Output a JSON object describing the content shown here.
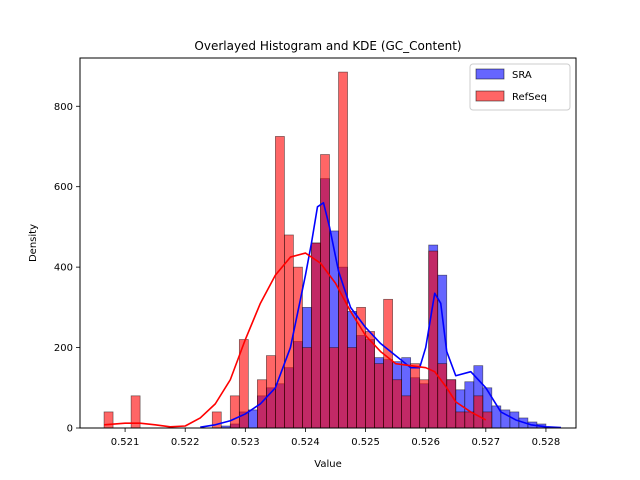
{
  "chart_data": {
    "type": "bar",
    "title": "Overlayed Histogram and KDE (GC_Content)",
    "xlabel": "Value",
    "ylabel": "Density",
    "xlim": [
      0.52025,
      0.5285
    ],
    "ylim": [
      0,
      920
    ],
    "xticks": [
      0.521,
      0.522,
      0.523,
      0.524,
      0.525,
      0.526,
      0.527,
      0.528
    ],
    "xtick_labels": [
      "0.521",
      "0.522",
      "0.523",
      "0.524",
      "0.525",
      "0.526",
      "0.527",
      "0.528"
    ],
    "yticks": [
      0,
      200,
      400,
      600,
      800
    ],
    "ytick_labels": [
      "0",
      "200",
      "400",
      "600",
      "800"
    ],
    "legend_position": "top-right",
    "grid": false,
    "series": [
      {
        "name": "SRA",
        "kind": "histogram",
        "color": "#0000ff",
        "alpha": 0.6,
        "bin_width": 0.00015,
        "bins": [
          {
            "x": 0.5226,
            "y": 5
          },
          {
            "x": 0.52275,
            "y": 10
          },
          {
            "x": 0.5229,
            "y": 40
          },
          {
            "x": 0.52305,
            "y": 45
          },
          {
            "x": 0.5232,
            "y": 80
          },
          {
            "x": 0.52335,
            "y": 100
          },
          {
            "x": 0.5235,
            "y": 110
          },
          {
            "x": 0.52365,
            "y": 150
          },
          {
            "x": 0.5238,
            "y": 215
          },
          {
            "x": 0.52395,
            "y": 300
          },
          {
            "x": 0.5241,
            "y": 460
          },
          {
            "x": 0.52425,
            "y": 620
          },
          {
            "x": 0.5244,
            "y": 490
          },
          {
            "x": 0.52455,
            "y": 400
          },
          {
            "x": 0.5247,
            "y": 290
          },
          {
            "x": 0.52485,
            "y": 230
          },
          {
            "x": 0.525,
            "y": 220
          },
          {
            "x": 0.52515,
            "y": 175
          },
          {
            "x": 0.5253,
            "y": 170
          },
          {
            "x": 0.52545,
            "y": 165
          },
          {
            "x": 0.5256,
            "y": 175
          },
          {
            "x": 0.52575,
            "y": 125
          },
          {
            "x": 0.5259,
            "y": 110
          },
          {
            "x": 0.52605,
            "y": 455
          },
          {
            "x": 0.5262,
            "y": 380
          },
          {
            "x": 0.52635,
            "y": 120
          },
          {
            "x": 0.5265,
            "y": 95
          },
          {
            "x": 0.52665,
            "y": 115
          },
          {
            "x": 0.5268,
            "y": 155
          },
          {
            "x": 0.52695,
            "y": 100
          },
          {
            "x": 0.5271,
            "y": 55
          },
          {
            "x": 0.52725,
            "y": 45
          },
          {
            "x": 0.5274,
            "y": 40
          },
          {
            "x": 0.52755,
            "y": 25
          },
          {
            "x": 0.5277,
            "y": 15
          },
          {
            "x": 0.52785,
            "y": 10
          }
        ]
      },
      {
        "name": "RefSeq",
        "kind": "histogram",
        "color": "#ff0000",
        "alpha": 0.6,
        "bin_width": 0.00015,
        "bins": [
          {
            "x": 0.52065,
            "y": 40
          },
          {
            "x": 0.5211,
            "y": 80
          },
          {
            "x": 0.52245,
            "y": 40
          },
          {
            "x": 0.52275,
            "y": 80
          },
          {
            "x": 0.5229,
            "y": 220
          },
          {
            "x": 0.5232,
            "y": 120
          },
          {
            "x": 0.52335,
            "y": 180
          },
          {
            "x": 0.5235,
            "y": 725
          },
          {
            "x": 0.52365,
            "y": 480
          },
          {
            "x": 0.5238,
            "y": 400
          },
          {
            "x": 0.52395,
            "y": 200
          },
          {
            "x": 0.5241,
            "y": 460
          },
          {
            "x": 0.52425,
            "y": 680
          },
          {
            "x": 0.5244,
            "y": 200
          },
          {
            "x": 0.52455,
            "y": 885
          },
          {
            "x": 0.5247,
            "y": 200
          },
          {
            "x": 0.52485,
            "y": 300
          },
          {
            "x": 0.525,
            "y": 240
          },
          {
            "x": 0.52515,
            "y": 160
          },
          {
            "x": 0.5253,
            "y": 320
          },
          {
            "x": 0.52545,
            "y": 120
          },
          {
            "x": 0.5256,
            "y": 80
          },
          {
            "x": 0.52575,
            "y": 160
          },
          {
            "x": 0.5259,
            "y": 120
          },
          {
            "x": 0.52605,
            "y": 440
          },
          {
            "x": 0.5262,
            "y": 160
          },
          {
            "x": 0.52635,
            "y": 120
          },
          {
            "x": 0.5265,
            "y": 40
          },
          {
            "x": 0.52665,
            "y": 40
          },
          {
            "x": 0.5268,
            "y": 80
          },
          {
            "x": 0.52695,
            "y": 40
          }
        ]
      },
      {
        "name": "SRA",
        "kind": "kde",
        "color": "#0000ff",
        "points": [
          [
            0.52225,
            2
          ],
          [
            0.5225,
            8
          ],
          [
            0.52275,
            18
          ],
          [
            0.523,
            35
          ],
          [
            0.52325,
            60
          ],
          [
            0.5235,
            100
          ],
          [
            0.52375,
            200
          ],
          [
            0.524,
            380
          ],
          [
            0.5241,
            460
          ],
          [
            0.5242,
            550
          ],
          [
            0.5243,
            560
          ],
          [
            0.5244,
            500
          ],
          [
            0.52455,
            390
          ],
          [
            0.52475,
            300
          ],
          [
            0.525,
            250
          ],
          [
            0.52525,
            210
          ],
          [
            0.5255,
            180
          ],
          [
            0.52575,
            150
          ],
          [
            0.5259,
            150
          ],
          [
            0.526,
            200
          ],
          [
            0.52615,
            335
          ],
          [
            0.52625,
            310
          ],
          [
            0.52635,
            190
          ],
          [
            0.5265,
            130
          ],
          [
            0.52675,
            140
          ],
          [
            0.527,
            100
          ],
          [
            0.52725,
            40
          ],
          [
            0.5275,
            20
          ],
          [
            0.52775,
            8
          ],
          [
            0.528,
            3
          ],
          [
            0.52825,
            1
          ]
        ]
      },
      {
        "name": "RefSeq",
        "kind": "kde",
        "color": "#ff0000",
        "points": [
          [
            0.52065,
            8
          ],
          [
            0.521,
            12
          ],
          [
            0.52125,
            12
          ],
          [
            0.5215,
            8
          ],
          [
            0.52175,
            3
          ],
          [
            0.522,
            5
          ],
          [
            0.52225,
            25
          ],
          [
            0.5225,
            60
          ],
          [
            0.52275,
            120
          ],
          [
            0.523,
            220
          ],
          [
            0.52325,
            310
          ],
          [
            0.5235,
            380
          ],
          [
            0.52375,
            425
          ],
          [
            0.524,
            435
          ],
          [
            0.52425,
            410
          ],
          [
            0.5245,
            360
          ],
          [
            0.52475,
            290
          ],
          [
            0.525,
            230
          ],
          [
            0.52525,
            190
          ],
          [
            0.5255,
            160
          ],
          [
            0.52575,
            155
          ],
          [
            0.526,
            150
          ],
          [
            0.52615,
            140
          ],
          [
            0.52635,
            100
          ],
          [
            0.5265,
            65
          ],
          [
            0.52675,
            40
          ],
          [
            0.527,
            20
          ]
        ]
      }
    ]
  }
}
